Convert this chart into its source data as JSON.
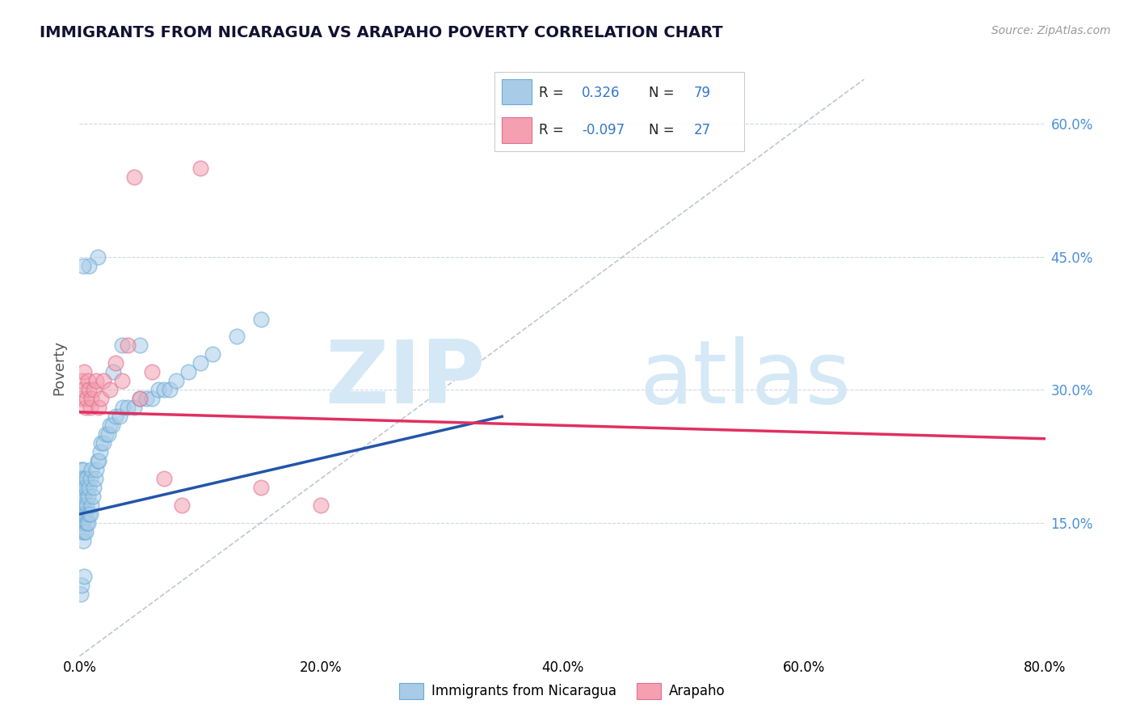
{
  "title": "IMMIGRANTS FROM NICARAGUA VS ARAPAHO POVERTY CORRELATION CHART",
  "source": "Source: ZipAtlas.com",
  "ylabel": "Poverty",
  "xlim": [
    0.0,
    0.8
  ],
  "ylim": [
    0.0,
    0.65
  ],
  "xticks": [
    0.0,
    0.2,
    0.4,
    0.6,
    0.8
  ],
  "xtick_labels": [
    "0.0%",
    "20.0%",
    "40.0%",
    "60.0%",
    "80.0%"
  ],
  "yticks": [
    0.15,
    0.3,
    0.45,
    0.6
  ],
  "ytick_labels": [
    "15.0%",
    "30.0%",
    "45.0%",
    "60.0%"
  ],
  "r_blue": 0.326,
  "n_blue": 79,
  "r_pink": -0.097,
  "n_pink": 27,
  "legend_label_blue": "Immigrants from Nicaragua",
  "legend_label_pink": "Arapaho",
  "blue_color": "#a8cce8",
  "pink_color": "#f4a0b0",
  "blue_edge_color": "#6aaad4",
  "pink_edge_color": "#e07090",
  "blue_line_color": "#2255aa",
  "pink_line_color": "#e03060",
  "watermark_zip": "ZIP",
  "watermark_atlas": "atlas",
  "watermark_color": "#d5e8f5",
  "blue_scatter_x": [
    0.001,
    0.001,
    0.001,
    0.001,
    0.001,
    0.001,
    0.001,
    0.001,
    0.001,
    0.001,
    0.002,
    0.002,
    0.002,
    0.002,
    0.002,
    0.002,
    0.002,
    0.003,
    0.003,
    0.003,
    0.003,
    0.003,
    0.004,
    0.004,
    0.004,
    0.004,
    0.005,
    0.005,
    0.005,
    0.006,
    0.006,
    0.006,
    0.007,
    0.007,
    0.008,
    0.008,
    0.009,
    0.009,
    0.01,
    0.01,
    0.011,
    0.012,
    0.013,
    0.014,
    0.015,
    0.016,
    0.017,
    0.018,
    0.02,
    0.022,
    0.024,
    0.025,
    0.027,
    0.03,
    0.033,
    0.036,
    0.04,
    0.045,
    0.05,
    0.055,
    0.06,
    0.065,
    0.07,
    0.075,
    0.08,
    0.09,
    0.1,
    0.11,
    0.13,
    0.15,
    0.05,
    0.035,
    0.028,
    0.015,
    0.008,
    0.003,
    0.001,
    0.002,
    0.004
  ],
  "blue_scatter_y": [
    0.16,
    0.17,
    0.17,
    0.18,
    0.18,
    0.19,
    0.19,
    0.2,
    0.2,
    0.21,
    0.14,
    0.15,
    0.16,
    0.17,
    0.18,
    0.19,
    0.2,
    0.13,
    0.15,
    0.17,
    0.19,
    0.21,
    0.14,
    0.16,
    0.18,
    0.2,
    0.14,
    0.16,
    0.19,
    0.15,
    0.17,
    0.2,
    0.15,
    0.18,
    0.16,
    0.19,
    0.16,
    0.2,
    0.17,
    0.21,
    0.18,
    0.19,
    0.2,
    0.21,
    0.22,
    0.22,
    0.23,
    0.24,
    0.24,
    0.25,
    0.25,
    0.26,
    0.26,
    0.27,
    0.27,
    0.28,
    0.28,
    0.28,
    0.29,
    0.29,
    0.29,
    0.3,
    0.3,
    0.3,
    0.31,
    0.32,
    0.33,
    0.34,
    0.36,
    0.38,
    0.35,
    0.35,
    0.32,
    0.45,
    0.44,
    0.44,
    0.07,
    0.08,
    0.09
  ],
  "pink_scatter_x": [
    0.001,
    0.002,
    0.003,
    0.004,
    0.005,
    0.006,
    0.007,
    0.008,
    0.009,
    0.01,
    0.012,
    0.014,
    0.016,
    0.018,
    0.02,
    0.025,
    0.03,
    0.035,
    0.04,
    0.045,
    0.05,
    0.06,
    0.07,
    0.085,
    0.1,
    0.15,
    0.2
  ],
  "pink_scatter_y": [
    0.29,
    0.31,
    0.3,
    0.32,
    0.28,
    0.29,
    0.31,
    0.3,
    0.28,
    0.29,
    0.3,
    0.31,
    0.28,
    0.29,
    0.31,
    0.3,
    0.33,
    0.31,
    0.35,
    0.54,
    0.29,
    0.32,
    0.2,
    0.17,
    0.55,
    0.19,
    0.17
  ],
  "blue_trend_x0": 0.0,
  "blue_trend_y0": 0.16,
  "blue_trend_x1": 0.35,
  "blue_trend_y1": 0.27,
  "pink_trend_x0": 0.0,
  "pink_trend_y0": 0.275,
  "pink_trend_x1": 0.8,
  "pink_trend_y1": 0.245
}
